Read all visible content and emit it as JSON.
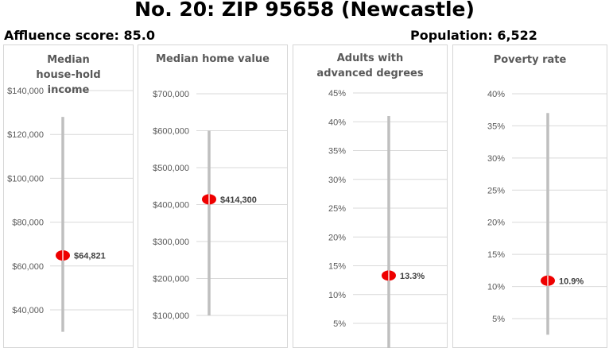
{
  "header": {
    "title": "No. 20: ZIP 95658 (Newcastle)",
    "affluence": "Affluence score: 85.0",
    "population": "Population: 6,522"
  },
  "chart_data": [
    {
      "type": "scatter",
      "title": "Median house-hold income",
      "ylim": [
        30000,
        140000
      ],
      "ticks": [
        40000,
        60000,
        80000,
        100000,
        120000,
        140000
      ],
      "tick_labels": [
        "$40,000",
        "$60,000",
        "$80,000",
        "$100,000",
        "$120,000",
        "$140,000"
      ],
      "range": [
        30000,
        128000
      ],
      "value": 64821,
      "value_label": "$64,821",
      "grid": true
    },
    {
      "type": "scatter",
      "title": "Median home value",
      "ylim": [
        100000,
        700000
      ],
      "ticks": [
        100000,
        200000,
        300000,
        400000,
        500000,
        600000,
        700000
      ],
      "tick_labels": [
        "$100,000",
        "$200,000",
        "$300,000",
        "$400,000",
        "$500,000",
        "$600,000",
        "$700,000"
      ],
      "range": [
        100000,
        600000
      ],
      "value": 414300,
      "value_label": "$414,300",
      "grid": true
    },
    {
      "type": "scatter",
      "title": "Adults with advanced degrees",
      "ylim": [
        0,
        45
      ],
      "ticks": [
        5,
        10,
        15,
        20,
        25,
        30,
        35,
        40,
        45
      ],
      "tick_labels": [
        "5%",
        "10%",
        "15%",
        "20%",
        "25%",
        "30%",
        "35%",
        "40%",
        "45%"
      ],
      "range": [
        0,
        41
      ],
      "value": 13.3,
      "value_label": "13.3%",
      "grid": true
    },
    {
      "type": "scatter",
      "title": "Poverty rate",
      "ylim": [
        0,
        40
      ],
      "ticks": [
        5,
        10,
        15,
        20,
        25,
        30,
        35,
        40
      ],
      "tick_labels": [
        "5%",
        "10%",
        "15%",
        "20%",
        "25%",
        "30%",
        "35%",
        "40%"
      ],
      "range": [
        2.5,
        37
      ],
      "value": 10.9,
      "value_label": "10.9%",
      "grid": true
    }
  ],
  "colors": {
    "marker": "#ee0000",
    "range_bar": "#bfbfbf",
    "grid": "#d9d9d9",
    "tick_text": "#595959",
    "value_text": "#404040"
  }
}
